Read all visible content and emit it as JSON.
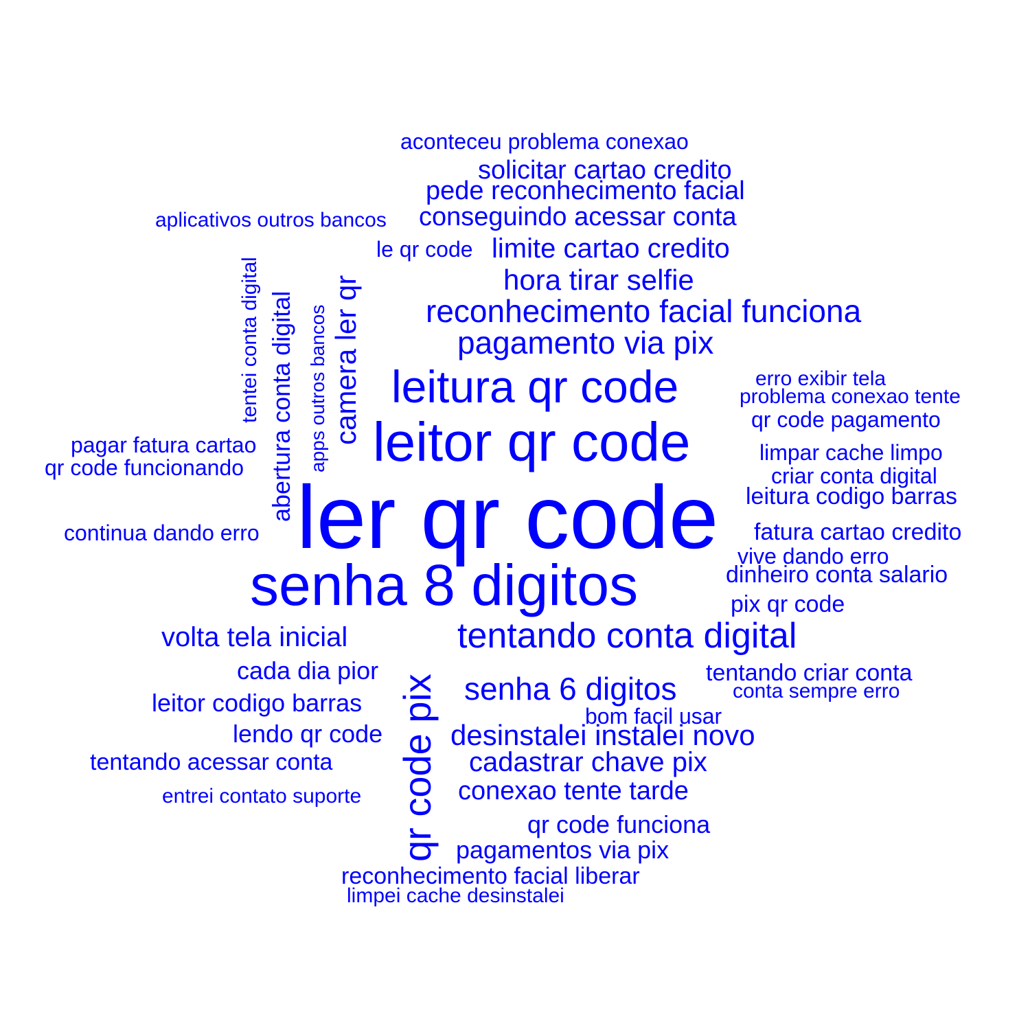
{
  "chart_data": {
    "type": "wordcloud",
    "color": "#0000ff",
    "words": [
      {
        "text": "ler qr code"
      },
      {
        "text": "senha 8 digitos"
      },
      {
        "text": "leitor qr code"
      },
      {
        "text": "leitura qr code"
      },
      {
        "text": "qr code pix",
        "vertical": true
      },
      {
        "text": "tentando conta digital"
      },
      {
        "text": "senha 6 digitos"
      },
      {
        "text": "reconhecimento facial funciona"
      },
      {
        "text": "pagamento via pix"
      },
      {
        "text": "camera ler qr",
        "vertical": true
      },
      {
        "text": "desinstalei instalei novo"
      },
      {
        "text": "hora tirar selfie"
      },
      {
        "text": "limite cartao credito"
      },
      {
        "text": "cadastrar chave pix"
      },
      {
        "text": "volta tela inicial"
      },
      {
        "text": "abertura conta digital",
        "vertical": true
      },
      {
        "text": "conexao tente tarde"
      },
      {
        "text": "conseguindo acessar conta"
      },
      {
        "text": "pede reconhecimento facial"
      },
      {
        "text": "solicitar cartao credito"
      },
      {
        "text": "qr code funciona"
      },
      {
        "text": "pagamentos via pix"
      },
      {
        "text": "leitor codigo barras"
      },
      {
        "text": "cada dia pior"
      },
      {
        "text": "lendo qr code"
      },
      {
        "text": "fatura cartao credito"
      },
      {
        "text": "leitura codigo barras"
      },
      {
        "text": "dinheiro conta salario"
      },
      {
        "text": "pix qr code"
      },
      {
        "text": "tentando criar conta"
      },
      {
        "text": "reconhecimento facial liberar"
      },
      {
        "text": "tentando acessar conta"
      },
      {
        "text": "qr code funcionando"
      },
      {
        "text": "continua dando erro"
      },
      {
        "text": "qr code pagamento"
      },
      {
        "text": "limpar cache limpo"
      },
      {
        "text": "criar conta digital"
      },
      {
        "text": "aconteceu problema conexao"
      },
      {
        "text": "pagar fatura cartao"
      },
      {
        "text": "entrei contato suporte"
      },
      {
        "text": "bom facil usar"
      },
      {
        "text": "vive dando erro"
      },
      {
        "text": "tentei conta digital",
        "vertical": true
      },
      {
        "text": "apps outros bancos",
        "vertical": true
      },
      {
        "text": "aplicativos outros bancos"
      },
      {
        "text": "le qr code"
      },
      {
        "text": "problema conexao tente"
      },
      {
        "text": "erro exibir tela"
      },
      {
        "text": "limpei cache desinstalei"
      },
      {
        "text": "conta sempre erro"
      }
    ]
  }
}
